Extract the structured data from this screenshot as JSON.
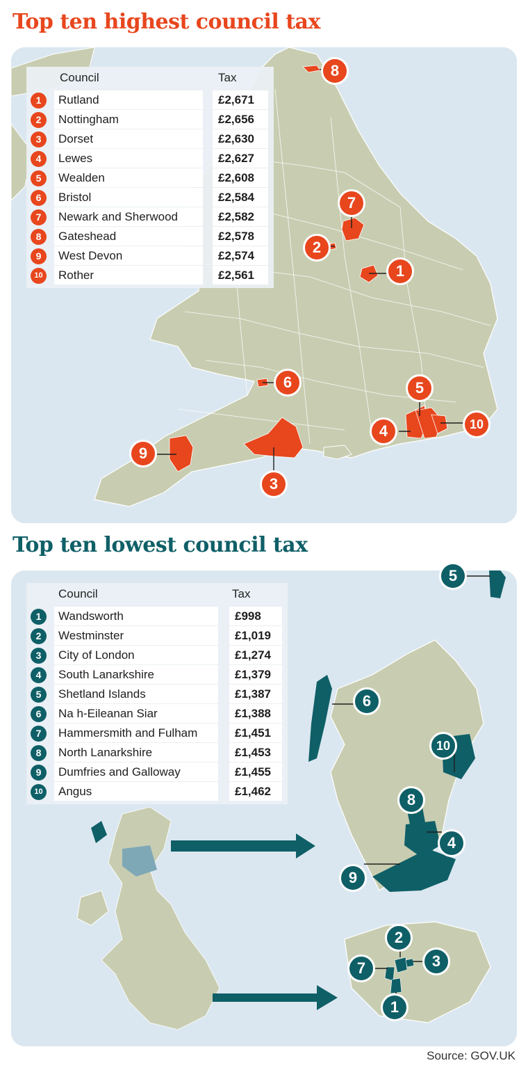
{
  "highest": {
    "title": "Top ten highest council tax",
    "header_council": "Council",
    "header_tax": "Tax",
    "color": "#e8461d",
    "rows": [
      {
        "rank": "1",
        "council": "Rutland",
        "tax": "£2,671"
      },
      {
        "rank": "2",
        "council": "Nottingham",
        "tax": "£2,656"
      },
      {
        "rank": "3",
        "council": "Dorset",
        "tax": "£2,630"
      },
      {
        "rank": "4",
        "council": "Lewes",
        "tax": "£2,627"
      },
      {
        "rank": "5",
        "council": "Wealden",
        "tax": "£2,608"
      },
      {
        "rank": "6",
        "council": "Bristol",
        "tax": "£2,584"
      },
      {
        "rank": "7",
        "council": "Newark and Sherwood",
        "tax": "£2,582"
      },
      {
        "rank": "8",
        "council": "Gateshead",
        "tax": "£2,578"
      },
      {
        "rank": "9",
        "council": "West Devon",
        "tax": "£2,574"
      },
      {
        "rank": "10",
        "council": "Rother",
        "tax": "£2,561"
      }
    ]
  },
  "lowest": {
    "title": "Top ten lowest council tax",
    "header_council": "Council",
    "header_tax": "Tax",
    "color": "#0f5f67",
    "rows": [
      {
        "rank": "1",
        "council": "Wandsworth",
        "tax": "£998"
      },
      {
        "rank": "2",
        "council": "Westminster",
        "tax": "£1,019"
      },
      {
        "rank": "3",
        "council": "City of London",
        "tax": "£1,274"
      },
      {
        "rank": "4",
        "council": "South Lanarkshire",
        "tax": "£1,379"
      },
      {
        "rank": "5",
        "council": "Shetland Islands",
        "tax": "£1,387"
      },
      {
        "rank": "6",
        "council": "Na h-Eileanan Siar",
        "tax": "£1,388"
      },
      {
        "rank": "7",
        "council": "Hammersmith and Fulham",
        "tax": "£1,451"
      },
      {
        "rank": "8",
        "council": "North Lanarkshire",
        "tax": "£1,453"
      },
      {
        "rank": "9",
        "council": "Dumfries and Galloway",
        "tax": "£1,455"
      },
      {
        "rank": "10",
        "council": "Angus",
        "tax": "£1,462"
      }
    ]
  },
  "colors": {
    "land": "#c8cdb1",
    "sea": "#dbe7f0",
    "border": "#ffffff"
  },
  "source": "Source: GOV.UK"
}
